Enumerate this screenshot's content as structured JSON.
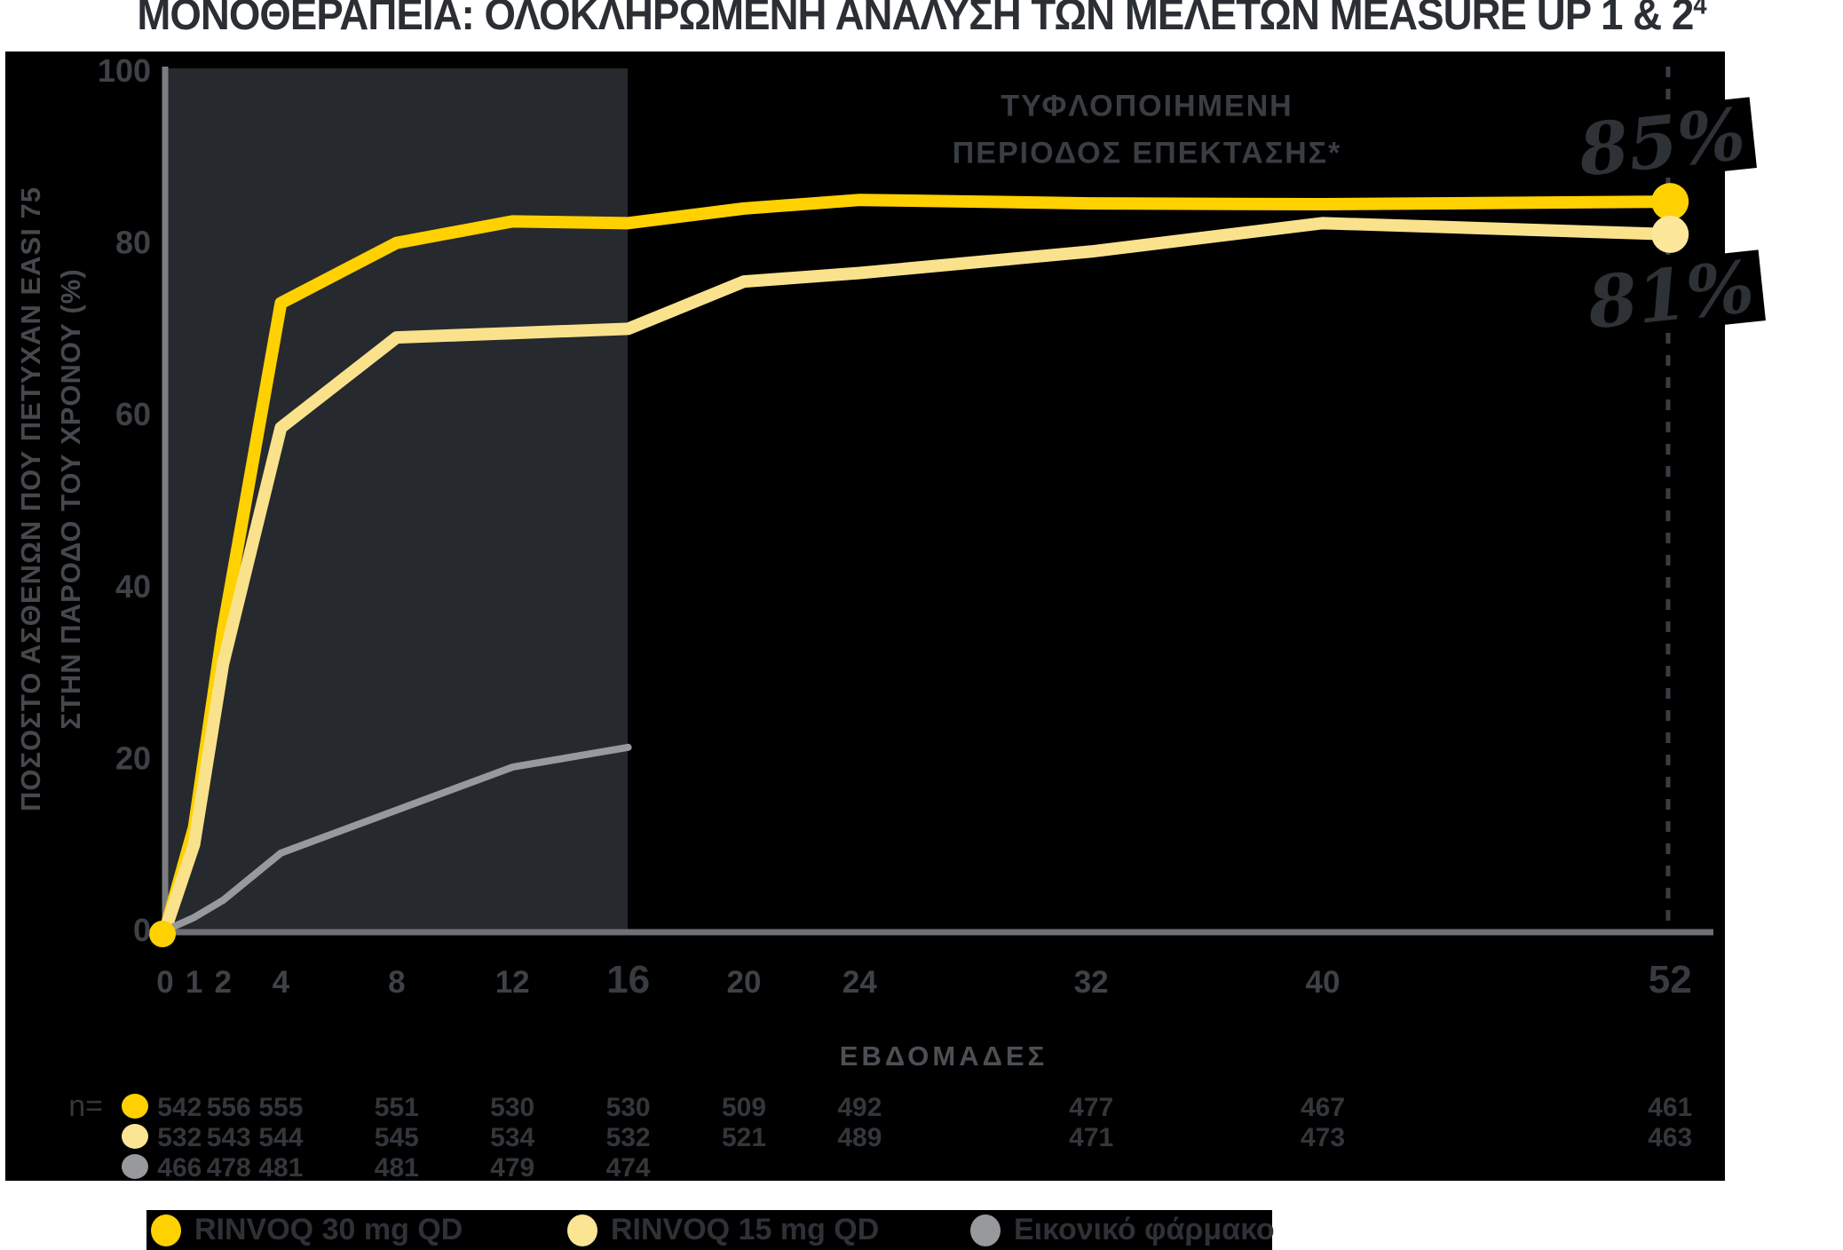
{
  "title": {
    "text": "ΜΟΝΟΘΕΡΑΠΕΙΑ: ΟΛΟΚΛΗΡΩΜΕΝΗ ΑΝΑΛΥΣΗ ΤΩΝ ΜΕΛΕΤΩΝ MEASURE UP 1 & 2",
    "superscript": "4"
  },
  "y_axis": {
    "label_line1": "ΠΟΣΟΣΤΟ ΑΣΘΕΝΩΝ ΠΟΥ ΠΕΤΥΧΑΝ EASI 75",
    "label_line2": "ΣΤΗΝ ΠΑΡΟΔΟ ΤΟΥ ΧΡΟΝΟΥ (%)"
  },
  "x_axis": {
    "label": "ΕΒΔΟΜΑΔΕΣ"
  },
  "annotations": {
    "blinded_line1": "ΤΥΦΛΟΠΟΙΗΜΕΝΗ",
    "blinded_line2": "ΠΕΡΙΟΔΟΣ ΕΠΕΚΤΑΣΗΣ*",
    "end_label_30mg": "85%",
    "end_label_15mg": "81%"
  },
  "legend": {
    "items": [
      {
        "label": "RINVOQ 30 mg QD",
        "color": "#FFD100"
      },
      {
        "label": "RINVOQ 15 mg QD",
        "color": "#FBE493"
      },
      {
        "label": "Εικονικό φάρμακο",
        "color": "#97999D"
      }
    ]
  },
  "n_table": {
    "row_label": "n=",
    "columns_week": [
      0.5,
      2.2,
      4,
      8,
      12,
      16,
      20,
      24,
      32,
      40,
      52
    ],
    "rows": [
      {
        "series": "RINVOQ 30 mg QD",
        "color": "#FFD100",
        "values": [
          "542",
          "556",
          "555",
          "551",
          "530",
          "530",
          "509",
          "492",
          "477",
          "467",
          "461"
        ]
      },
      {
        "series": "RINVOQ 15 mg QD",
        "color": "#FBE493",
        "values": [
          "532",
          "543",
          "544",
          "545",
          "534",
          "532",
          "521",
          "489",
          "471",
          "473",
          "463"
        ]
      },
      {
        "series": "Εικονικό φάρμακο",
        "color": "#97999D",
        "values": [
          "466",
          "478",
          "481",
          "481",
          "479",
          "474"
        ]
      }
    ]
  },
  "chart_data": {
    "type": "line",
    "title": "ΜΟΝΟΘΕΡΑΠΕΙΑ: ΟΛΟΚΛΗΡΩΜΕΝΗ ΑΝΑΛΥΣΗ ΤΩΝ ΜΕΛΕΤΩΝ MEASURE UP 1 & 2 (4)",
    "xlabel": "ΕΒΔΟΜΑΔΕΣ",
    "ylabel": "ΠΟΣΟΣΤΟ ΑΣΘΕΝΩΝ ΠΟΥ ΠΕΤΥΧΑΝ EASI 75 ΣΤΗΝ ΠΑΡΟΔΟ ΤΟΥ ΧΡΟΝΟΥ (%)",
    "xlim": [
      0,
      54
    ],
    "ylim": [
      0,
      100
    ],
    "grid": false,
    "legend_position": "bottom",
    "x_ticks": [
      0,
      1,
      2,
      4,
      8,
      12,
      16,
      20,
      24,
      32,
      40,
      52
    ],
    "x_ticks_emphasis": [
      16,
      52
    ],
    "y_ticks": [
      0,
      20,
      40,
      60,
      80,
      100
    ],
    "shaded_region_weeks": [
      0,
      16
    ],
    "dashed_line_week": 52,
    "series": [
      {
        "name": "RINVOQ 30 mg QD",
        "color": "#FFD100",
        "marker_color": "#FFD100",
        "stroke_width": 14,
        "end_value_label": "85%",
        "points": [
          [
            0,
            0
          ],
          [
            1,
            12
          ],
          [
            2,
            35
          ],
          [
            4,
            73
          ],
          [
            8,
            80
          ],
          [
            12,
            82.5
          ],
          [
            16,
            82.3
          ],
          [
            20,
            84
          ],
          [
            24,
            85
          ],
          [
            32,
            84.6
          ],
          [
            40,
            84.5
          ],
          [
            52,
            84.8
          ]
        ]
      },
      {
        "name": "RINVOQ 15 mg QD",
        "color": "#FAE28C",
        "marker_color": "#FCE79B",
        "stroke_width": 14,
        "end_value_label": "81%",
        "points": [
          [
            0,
            0
          ],
          [
            1,
            10
          ],
          [
            2,
            31
          ],
          [
            4,
            58.5
          ],
          [
            8,
            69
          ],
          [
            12,
            69.5
          ],
          [
            16,
            70
          ],
          [
            20,
            75.5
          ],
          [
            24,
            76.5
          ],
          [
            32,
            79
          ],
          [
            40,
            82.3
          ],
          [
            52,
            81
          ]
        ]
      },
      {
        "name": "Εικονικό φάρμακο",
        "color": "#97999D",
        "marker_color": "#97999D",
        "stroke_width": 8,
        "end_value_label": null,
        "points": [
          [
            0,
            0
          ],
          [
            1,
            1.5
          ],
          [
            2,
            3.5
          ],
          [
            4,
            9
          ],
          [
            8,
            14
          ],
          [
            12,
            19
          ],
          [
            16,
            21.3
          ]
        ]
      }
    ],
    "colors": {
      "plot_background": "#000000",
      "shaded_region": "#26292d",
      "x_axis_line": "#6f7174",
      "y_axis_line": "#7b7d80",
      "dashed_line": "#3a3e44",
      "tick_text": "#3e4246",
      "tick_text_emphasis": "#383c41",
      "n_text": "#33373b"
    }
  }
}
